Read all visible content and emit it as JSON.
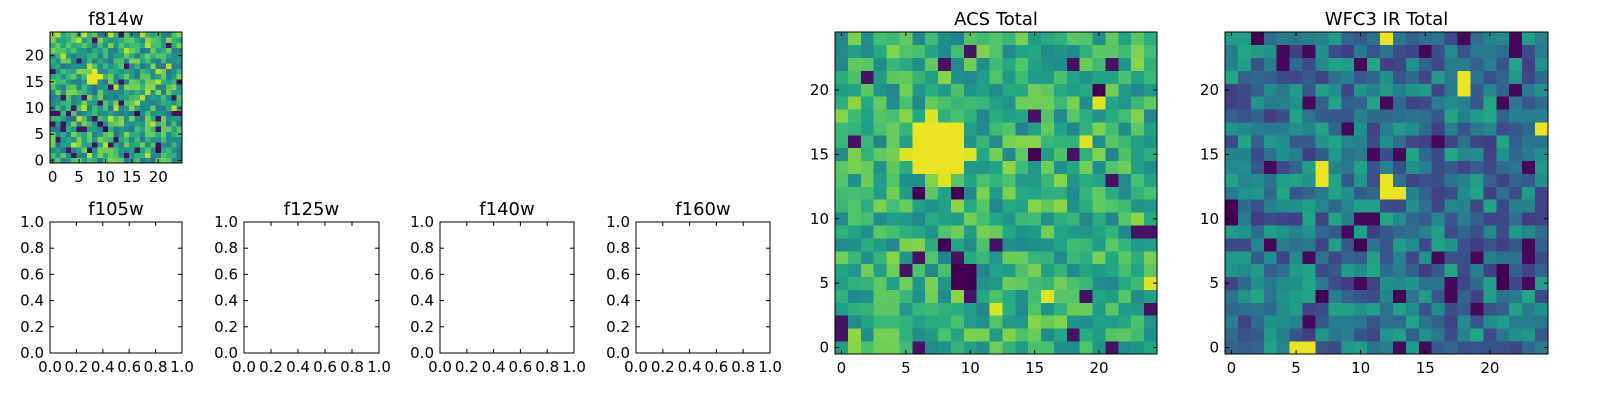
{
  "chart_data": [
    {
      "type": "heatmap",
      "title": "f814w",
      "xlim": [
        -0.5,
        24.5
      ],
      "ylim": [
        -0.5,
        24.5
      ],
      "xticks": [
        "0",
        "5",
        "10",
        "15",
        "20"
      ],
      "yticks": [
        "0",
        "5",
        "10",
        "15",
        "20"
      ],
      "grid": "25x25 pixels",
      "seed": 814,
      "colormap": "viridis",
      "values_approx": "random noise with a bright source near x=8, y=15 and a dark region near x=10, y=6"
    },
    {
      "type": "heatmap",
      "title": "f105w",
      "empty": true,
      "xlim": [
        0,
        1
      ],
      "ylim": [
        0,
        1
      ],
      "xticks": [
        "0.0",
        "0.2",
        "0.4",
        "0.6",
        "0.8",
        "1.0"
      ],
      "yticks": [
        "0.0",
        "0.2",
        "0.4",
        "0.6",
        "0.8",
        "1.0"
      ]
    },
    {
      "type": "heatmap",
      "title": "f125w",
      "empty": true,
      "xlim": [
        0,
        1
      ],
      "ylim": [
        0,
        1
      ],
      "xticks": [
        "0.0",
        "0.2",
        "0.4",
        "0.6",
        "0.8",
        "1.0"
      ],
      "yticks": [
        "0.0",
        "0.2",
        "0.4",
        "0.6",
        "0.8",
        "1.0"
      ]
    },
    {
      "type": "heatmap",
      "title": "f140w",
      "empty": true,
      "xlim": [
        0,
        1
      ],
      "ylim": [
        0,
        1
      ],
      "xticks": [
        "0.0",
        "0.2",
        "0.4",
        "0.6",
        "0.8",
        "1.0"
      ],
      "yticks": [
        "0.0",
        "0.2",
        "0.4",
        "0.6",
        "0.8",
        "1.0"
      ]
    },
    {
      "type": "heatmap",
      "title": "f160w",
      "empty": true,
      "xlim": [
        0,
        1
      ],
      "ylim": [
        0,
        1
      ],
      "xticks": [
        "0.0",
        "0.2",
        "0.4",
        "0.6",
        "0.8",
        "1.0"
      ],
      "yticks": [
        "0.0",
        "0.2",
        "0.4",
        "0.6",
        "0.8",
        "1.0"
      ]
    },
    {
      "type": "heatmap",
      "title": "ACS Total",
      "xlim": [
        -0.5,
        24.5
      ],
      "ylim": [
        -0.5,
        24.5
      ],
      "xticks": [
        "0",
        "5",
        "10",
        "15",
        "20"
      ],
      "yticks": [
        "0",
        "5",
        "10",
        "15",
        "20"
      ],
      "grid": "25x25 pixels",
      "seed": 101,
      "colormap": "viridis",
      "values_approx": "noise biased bright (green-yellow); bright blob at x=7-9, y=14-17; dark pixels near x=9-10, y=6"
    },
    {
      "type": "heatmap",
      "title": "WFC3 IR Total",
      "xlim": [
        -0.5,
        24.5
      ],
      "ylim": [
        -0.5,
        24.5
      ],
      "xticks": [
        "0",
        "5",
        "10",
        "15",
        "20"
      ],
      "yticks": [
        "0",
        "5",
        "10",
        "15",
        "20"
      ],
      "grid": "25x25 pixels",
      "seed": 303,
      "colormap": "viridis",
      "values_approx": "noise biased dark (blue-teal); bright pixels near x=7, y=13-14; x=12-13, y=12; x=18, y=20-21; x=5-6, y=0"
    }
  ]
}
